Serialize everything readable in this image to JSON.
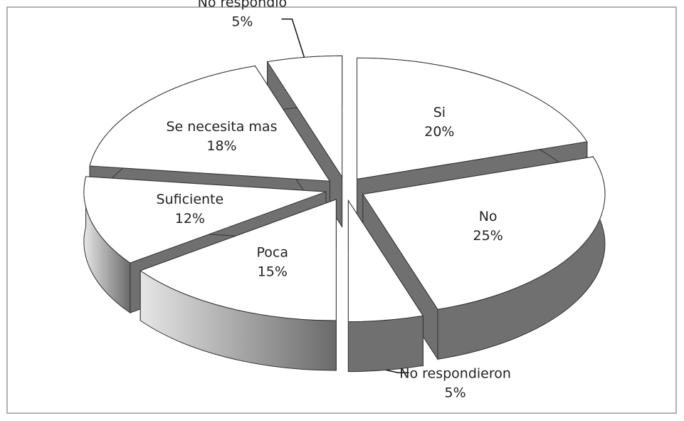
{
  "chart_data": {
    "type": "pie3d",
    "categories": [
      "Si",
      "No",
      "No respondieron",
      "Poca",
      "Suficiente",
      "Se necesita mas",
      "No respondio"
    ],
    "values": [
      20,
      25,
      5,
      15,
      12,
      18,
      5
    ],
    "value_labels": [
      "20%",
      "25%",
      "5%",
      "15%",
      "12%",
      "18%",
      "5%"
    ],
    "colors": {
      "top": "#ffffff",
      "side": "#707070",
      "side_light": "#c8c8c8"
    }
  }
}
